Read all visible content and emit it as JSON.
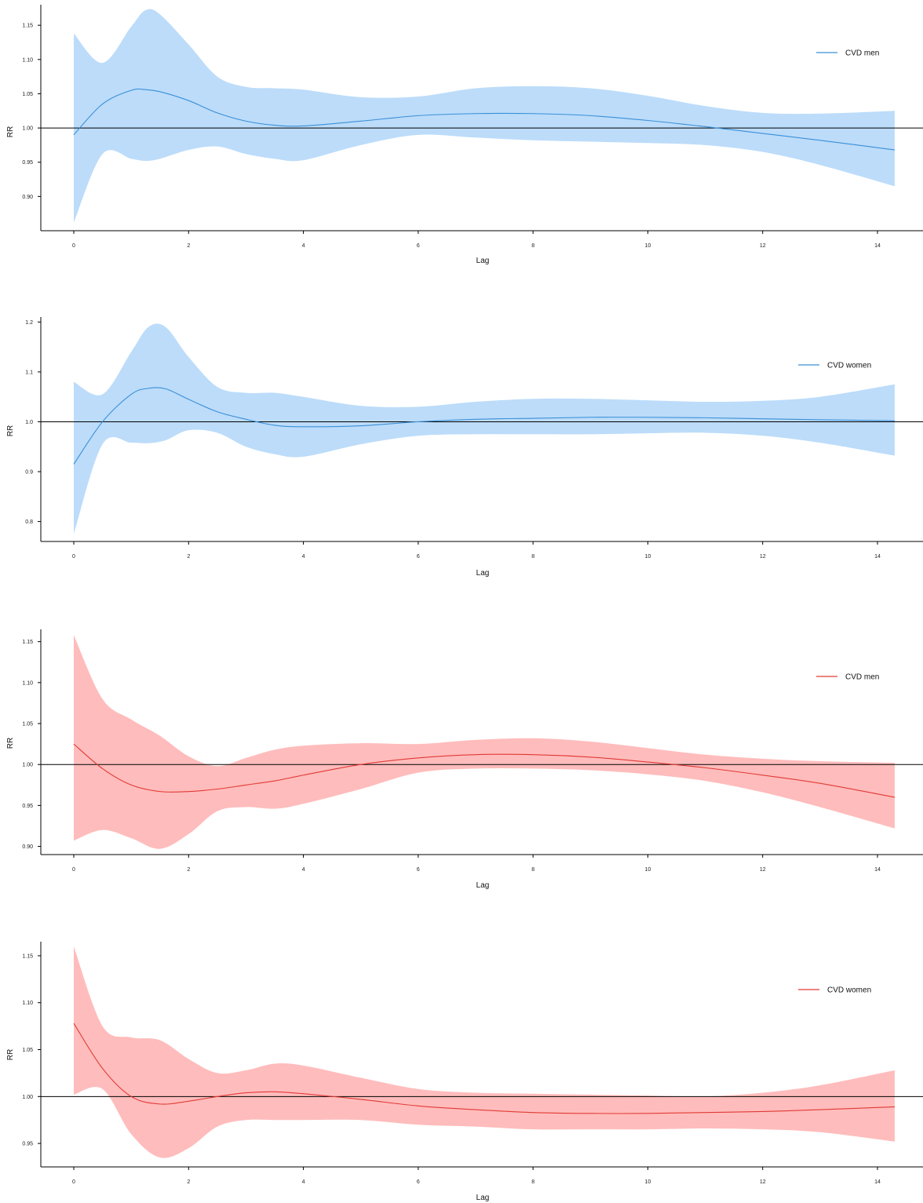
{
  "chart_data": [
    {
      "type": "line",
      "xlabel": "Lag",
      "ylabel": "RR",
      "xlim": [
        0,
        14.3
      ],
      "ylim": [
        0.85,
        1.18
      ],
      "xticks": [
        "0",
        "2",
        "4",
        "6",
        "8",
        "10",
        "12",
        "14"
      ],
      "yticks": [
        "0.90",
        "0.95",
        "1.00",
        "1.05",
        "1.10",
        "1.15"
      ],
      "reference_line": 1.0,
      "legend": "top-right",
      "colors": {
        "line": "#3a8fd6",
        "band": "#bcdcfa"
      },
      "series": [
        {
          "name": "CVD men",
          "x": [
            0,
            0.5,
            1,
            1.25,
            1.5,
            2,
            2.5,
            3,
            3.5,
            4,
            5,
            6,
            7,
            8,
            9,
            10,
            11,
            12,
            13,
            14.3
          ],
          "y": [
            0.99,
            1.035,
            1.055,
            1.056,
            1.053,
            1.04,
            1.022,
            1.01,
            1.004,
            1.003,
            1.01,
            1.018,
            1.021,
            1.021,
            1.018,
            1.011,
            1.002,
            0.992,
            0.982,
            0.968
          ],
          "lower": [
            0.862,
            0.962,
            0.955,
            0.952,
            0.955,
            0.968,
            0.973,
            0.962,
            0.955,
            0.953,
            0.975,
            0.99,
            0.986,
            0.982,
            0.98,
            0.978,
            0.975,
            0.965,
            0.946,
            0.915
          ],
          "upper": [
            1.138,
            1.095,
            1.148,
            1.172,
            1.166,
            1.122,
            1.075,
            1.06,
            1.058,
            1.056,
            1.045,
            1.046,
            1.058,
            1.061,
            1.058,
            1.047,
            1.032,
            1.022,
            1.021,
            1.025
          ]
        }
      ]
    },
    {
      "type": "line",
      "xlabel": "Lag",
      "ylabel": "RR",
      "xlim": [
        0,
        14.3
      ],
      "ylim": [
        0.76,
        1.21
      ],
      "xticks": [
        "0",
        "2",
        "4",
        "6",
        "8",
        "10",
        "12",
        "14"
      ],
      "yticks": [
        "0.8",
        "0.9",
        "1.0",
        "1.1",
        "1.2"
      ],
      "reference_line": 1.0,
      "legend": "top-right",
      "colors": {
        "line": "#3a8fd6",
        "band": "#bcdcfa"
      },
      "series": [
        {
          "name": "CVD women",
          "x": [
            0,
            0.5,
            1,
            1.3,
            1.6,
            2,
            2.5,
            3,
            3.5,
            4,
            5,
            6,
            7,
            8,
            9,
            10,
            11,
            12,
            13,
            14.3
          ],
          "y": [
            0.915,
            1.0,
            1.055,
            1.067,
            1.066,
            1.045,
            1.02,
            1.005,
            0.993,
            0.99,
            0.992,
            1.0,
            1.005,
            1.007,
            1.009,
            1.009,
            1.008,
            1.006,
            1.004,
            1.002
          ],
          "lower": [
            0.775,
            0.955,
            0.958,
            0.957,
            0.963,
            0.983,
            0.978,
            0.95,
            0.935,
            0.93,
            0.955,
            0.972,
            0.975,
            0.975,
            0.975,
            0.977,
            0.978,
            0.972,
            0.958,
            0.932
          ],
          "upper": [
            1.08,
            1.055,
            1.14,
            1.19,
            1.19,
            1.13,
            1.07,
            1.058,
            1.058,
            1.05,
            1.032,
            1.03,
            1.04,
            1.046,
            1.046,
            1.043,
            1.04,
            1.042,
            1.05,
            1.075
          ]
        }
      ]
    },
    {
      "type": "line",
      "xlabel": "Lag",
      "ylabel": "RR",
      "xlim": [
        0,
        14.3
      ],
      "ylim": [
        0.89,
        1.165
      ],
      "xticks": [
        "0",
        "2",
        "4",
        "6",
        "8",
        "10",
        "12",
        "14"
      ],
      "yticks": [
        "0.90",
        "0.95",
        "1.00",
        "1.05",
        "1.10",
        "1.15"
      ],
      "reference_line": 1.0,
      "legend": "top-right",
      "colors": {
        "line": "#e03a35",
        "band": "#ffbcbc"
      },
      "series": [
        {
          "name": "CVD men",
          "x": [
            0,
            0.5,
            1,
            1.5,
            2,
            2.5,
            3,
            3.5,
            4,
            5,
            6,
            7,
            8,
            9,
            10,
            11,
            12,
            13,
            14.3
          ],
          "y": [
            1.025,
            0.995,
            0.975,
            0.967,
            0.967,
            0.97,
            0.975,
            0.98,
            0.987,
            1.0,
            1.008,
            1.012,
            1.012,
            1.009,
            1.003,
            0.996,
            0.987,
            0.977,
            0.96
          ],
          "lower": [
            0.907,
            0.92,
            0.91,
            0.897,
            0.915,
            0.943,
            0.948,
            0.946,
            0.952,
            0.97,
            0.99,
            0.995,
            0.995,
            0.993,
            0.988,
            0.98,
            0.966,
            0.948,
            0.922
          ],
          "upper": [
            1.158,
            1.08,
            1.055,
            1.035,
            1.01,
            0.998,
            1.008,
            1.018,
            1.023,
            1.026,
            1.025,
            1.03,
            1.032,
            1.028,
            1.02,
            1.012,
            1.007,
            1.004,
            1.002
          ]
        }
      ]
    },
    {
      "type": "line",
      "xlabel": "Lag",
      "ylabel": "RR",
      "xlim": [
        0,
        14.3
      ],
      "ylim": [
        0.925,
        1.165
      ],
      "xticks": [
        "0",
        "2",
        "4",
        "6",
        "8",
        "10",
        "12",
        "14"
      ],
      "yticks": [
        "0.95",
        "1.00",
        "1.05",
        "1.10",
        "1.15"
      ],
      "reference_line": 1.0,
      "legend": "top-right",
      "colors": {
        "line": "#e03a35",
        "band": "#ffbcbc"
      },
      "series": [
        {
          "name": "CVD women",
          "x": [
            0,
            0.5,
            1,
            1.5,
            2,
            2.5,
            3,
            3.5,
            4,
            5,
            6,
            7,
            8,
            9,
            10,
            11,
            12,
            13,
            14.3
          ],
          "y": [
            1.078,
            1.03,
            1.0,
            0.992,
            0.995,
            1.0,
            1.004,
            1.005,
            1.003,
            0.997,
            0.99,
            0.986,
            0.983,
            0.982,
            0.982,
            0.983,
            0.984,
            0.986,
            0.989
          ],
          "lower": [
            1.002,
            1.008,
            0.96,
            0.935,
            0.945,
            0.968,
            0.975,
            0.975,
            0.975,
            0.975,
            0.97,
            0.968,
            0.965,
            0.965,
            0.965,
            0.966,
            0.965,
            0.962,
            0.952
          ],
          "upper": [
            1.16,
            1.075,
            1.063,
            1.06,
            1.04,
            1.025,
            1.028,
            1.035,
            1.033,
            1.02,
            1.008,
            1.004,
            1.003,
            1.002,
            1.001,
            1.0,
            1.004,
            1.012,
            1.028
          ]
        }
      ]
    }
  ]
}
